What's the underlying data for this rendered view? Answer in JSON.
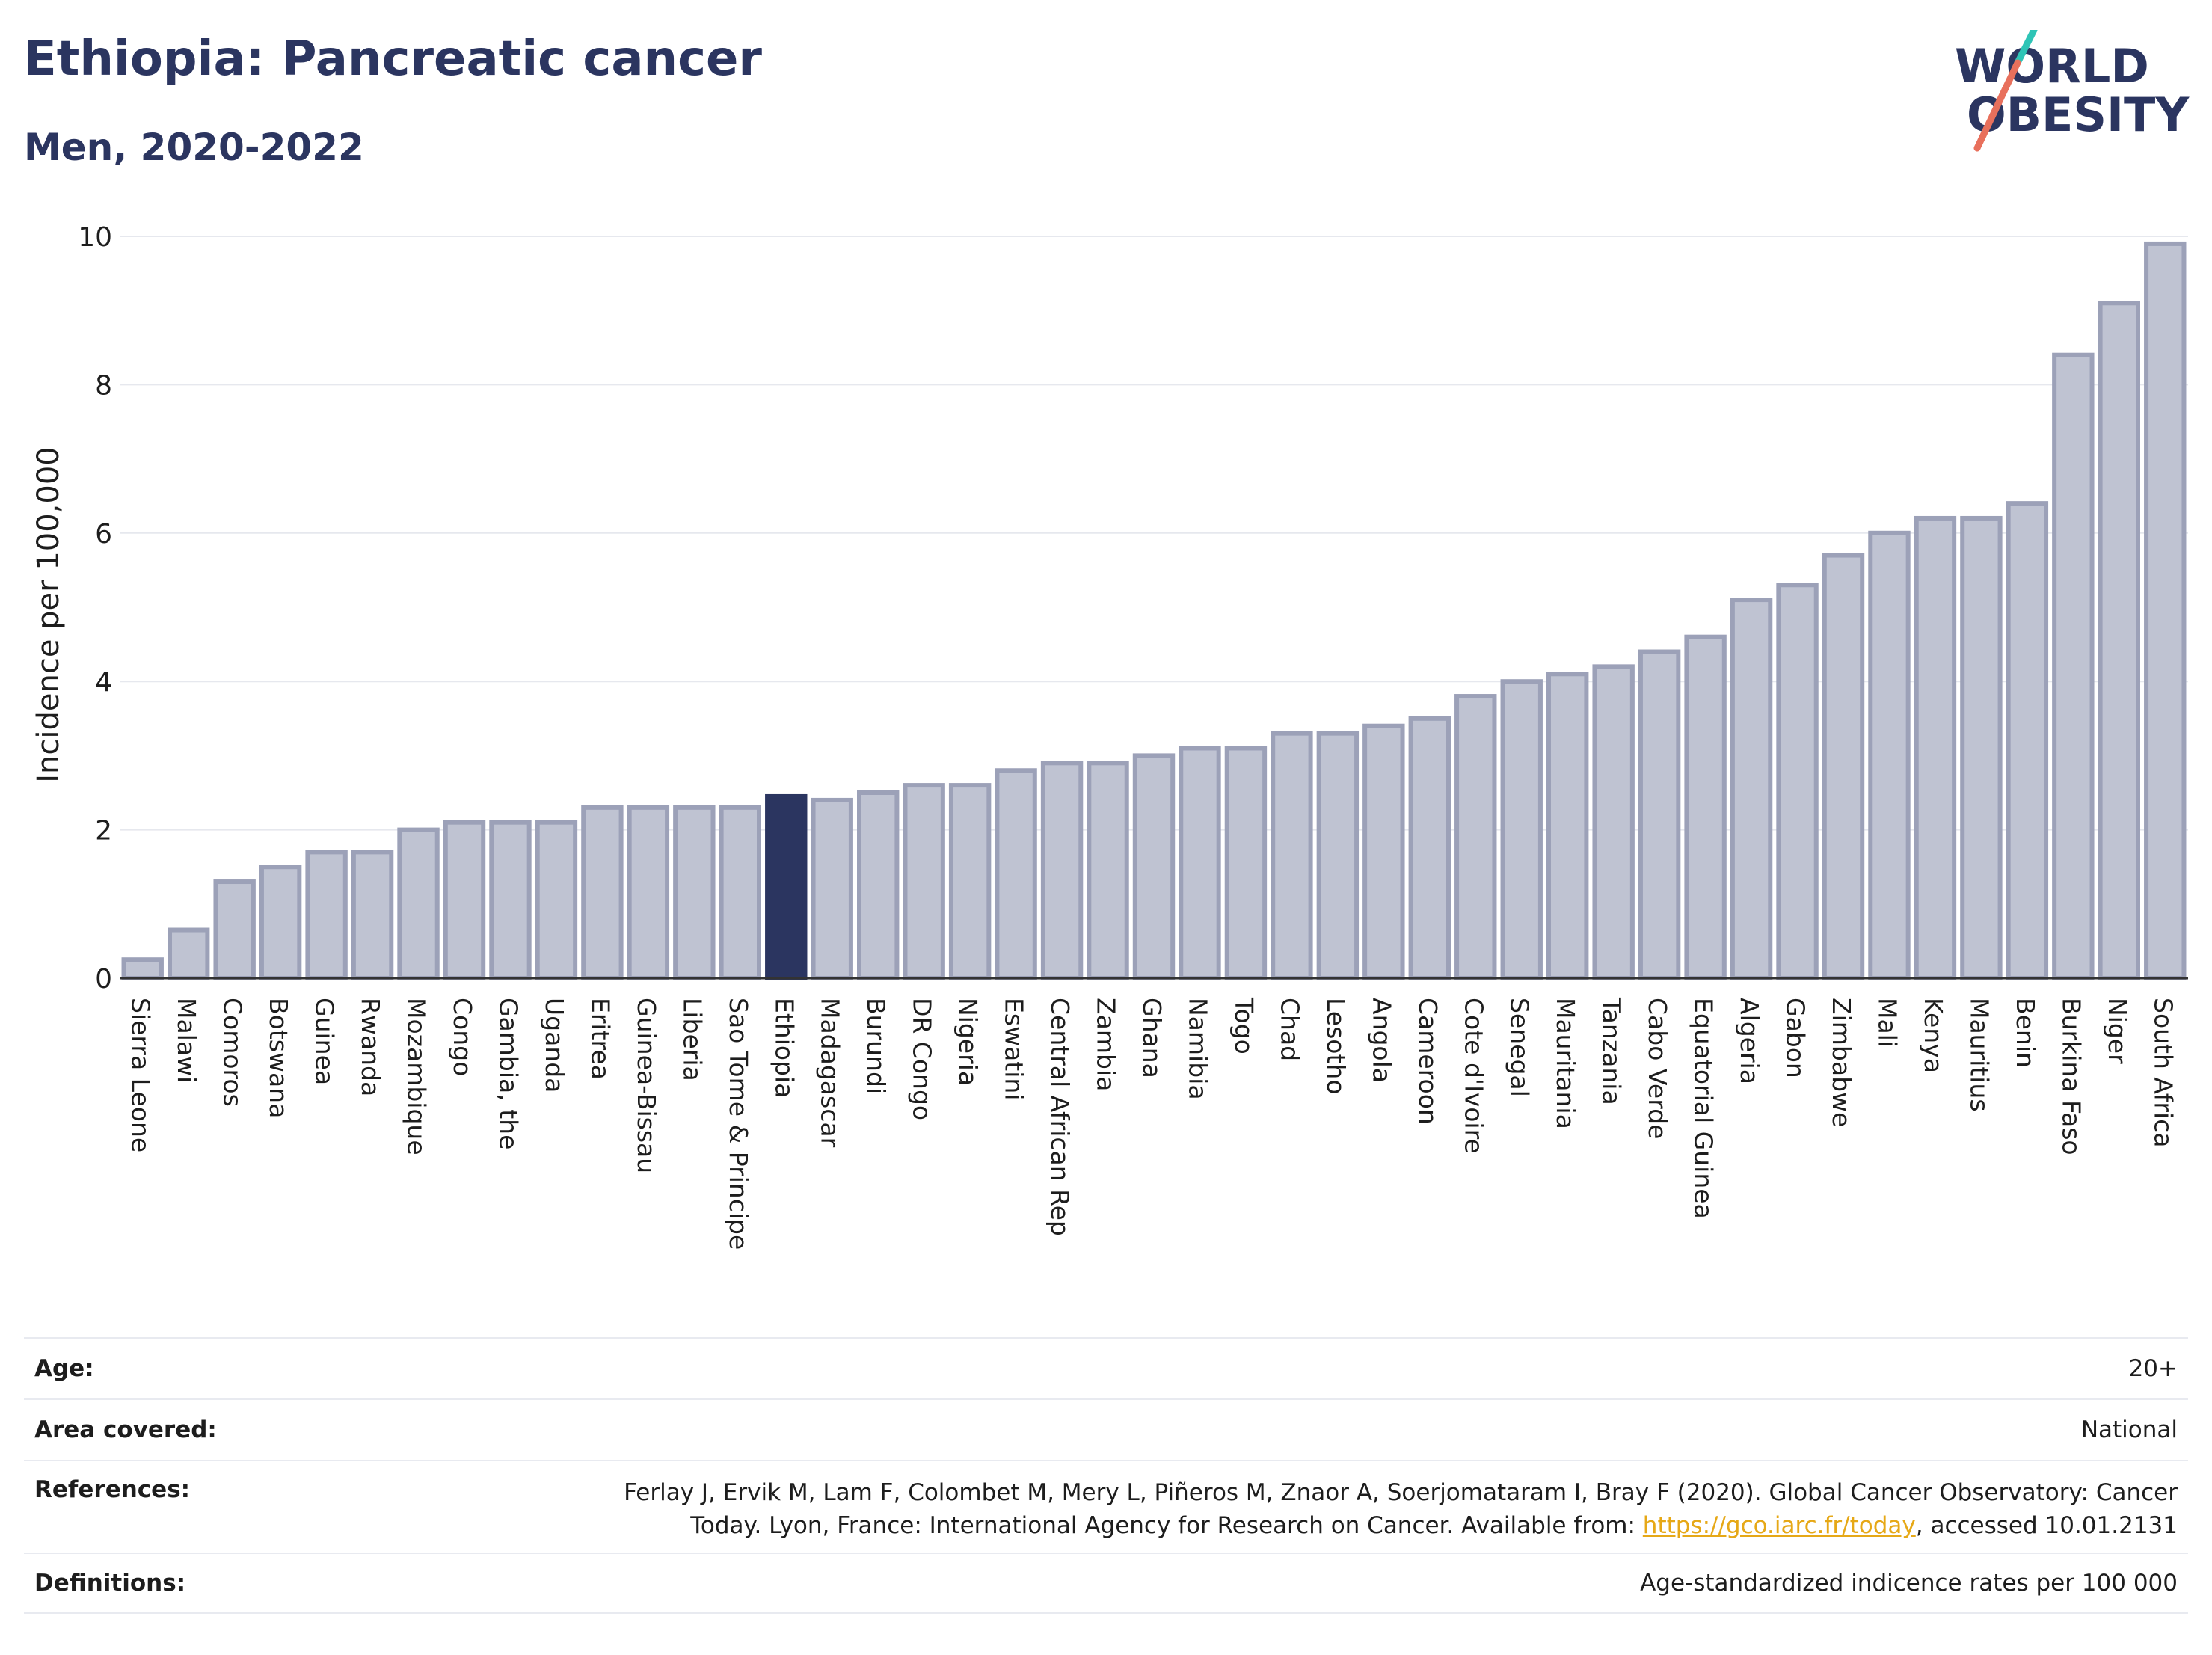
{
  "header": {
    "title": "Ethiopia: Pancreatic cancer",
    "subtitle": "Men, 2020-2022"
  },
  "logo": {
    "line1": "WORLD",
    "line2": "OBESITY",
    "slash_colors": [
      "#2ec4b6",
      "#e8705c"
    ]
  },
  "colors": {
    "bar_fill": "#bfc3d2",
    "bar_stroke": "#9ca1b8",
    "highlight": "#2b3560",
    "grid": "#e6e8ee",
    "axis": "#333333"
  },
  "chart_data": {
    "type": "bar",
    "ylabel": "Incidence per 100,000",
    "ylim": [
      0,
      10
    ],
    "yticks": [
      0,
      2,
      4,
      6,
      8,
      10
    ],
    "grid": true,
    "highlight": "Ethiopia",
    "categories": [
      "Sierra Leone",
      "Malawi",
      "Comoros",
      "Botswana",
      "Guinea",
      "Rwanda",
      "Mozambique",
      "Congo",
      "Gambia, the",
      "Uganda",
      "Eritrea",
      "Guinea-Bissau",
      "Liberia",
      "Sao Tome & Principe",
      "Ethiopia",
      "Madagascar",
      "Burundi",
      "DR Congo",
      "Nigeria",
      "Eswatini",
      "Central African Rep",
      "Zambia",
      "Ghana",
      "Namibia",
      "Togo",
      "Chad",
      "Lesotho",
      "Angola",
      "Cameroon",
      "Cote d'Ivoire",
      "Senegal",
      "Mauritania",
      "Tanzania",
      "Cabo Verde",
      "Equatorial Guinea",
      "Algeria",
      "Gabon",
      "Zimbabwe",
      "Mali",
      "Kenya",
      "Mauritius",
      "Benin",
      "Burkina Faso",
      "Niger",
      "South Africa"
    ],
    "values": [
      0.25,
      0.65,
      1.3,
      1.5,
      1.7,
      1.7,
      2.0,
      2.1,
      2.1,
      2.1,
      2.3,
      2.3,
      2.3,
      2.3,
      2.45,
      2.4,
      2.5,
      2.6,
      2.6,
      2.8,
      2.9,
      2.9,
      3.0,
      3.1,
      3.1,
      3.3,
      3.3,
      3.4,
      3.5,
      3.8,
      4.0,
      4.1,
      4.2,
      4.4,
      4.6,
      5.1,
      5.3,
      5.7,
      6.0,
      6.2,
      6.2,
      6.4,
      8.4,
      9.1,
      9.9
    ]
  },
  "meta": {
    "age_label": "Age:",
    "age_value": "20+",
    "area_label": "Area covered:",
    "area_value": "National",
    "references_label": "References:",
    "references_text_1": "Ferlay J, Ervik M, Lam F, Colombet M, Mery L, Piñeros M, Znaor A, Soerjomataram I, Bray F (2020). Global Cancer Observatory: Cancer Today. Lyon, France: International Agency for Research on Cancer. Available from: ",
    "references_link": "https://gco.iarc.fr/today",
    "references_text_2": ", accessed 10.01.2131",
    "definitions_label": "Definitions:",
    "definitions_value": "Age-standardized indicence rates per 100 000"
  }
}
